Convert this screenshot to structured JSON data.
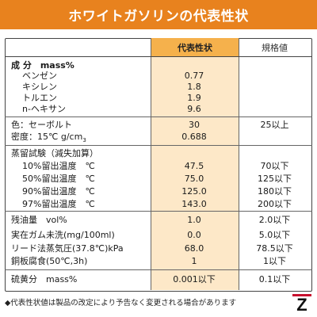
{
  "title": "ホワイトガソリンの代表性状",
  "table": {
    "col_rep": "代表性状",
    "col_spec": "規格値",
    "rows": [
      {
        "label": "成 分　mass%",
        "value": "",
        "spec": ""
      },
      {
        "label": "ベンゼン",
        "value": "0.77",
        "spec": ""
      },
      {
        "label": "キシレン",
        "value": "1.8",
        "spec": ""
      },
      {
        "label": "トルエン",
        "value": "1.9",
        "spec": ""
      },
      {
        "label": "n-ヘキサン",
        "value": "9.6",
        "spec": ""
      },
      {
        "label": "色：セーボルト",
        "value": "30",
        "spec": "25以上"
      },
      {
        "label": "密度：15℃ g/cm",
        "label_sub": "3",
        "value": "0.688",
        "spec": ""
      },
      {
        "label": "蒸留試験（減失加算）",
        "value": "",
        "spec": ""
      },
      {
        "label": "10%留出温度　℃",
        "value": "47.5",
        "spec": "70以下"
      },
      {
        "label": "50%留出温度　℃",
        "value": "75.0",
        "spec": "125以下"
      },
      {
        "label": "90%留出温度　℃",
        "value": "125.0",
        "spec": "180以下"
      },
      {
        "label": "97%留出温度　℃",
        "value": "143.0",
        "spec": "200以下"
      },
      {
        "label": "残油量　vol%",
        "value": "1.0",
        "spec": "2.0以下"
      },
      {
        "label": "実在ガム未洗(mg/100ml)",
        "value": "0.0",
        "spec": "5.0以下"
      },
      {
        "label": "リード法蒸気圧(37.8℃)kPa",
        "value": "68.0",
        "spec": "78.5以下"
      },
      {
        "label": "銅板腐食(50℃,3h)",
        "value": "1",
        "spec": "1以下"
      },
      {
        "label": "硫黄分　mass%",
        "value": "0.001以下",
        "spec": "0.1以下"
      }
    ]
  },
  "footnote": "◆代表性状値は製品の改定により予告なく変更される場合があります",
  "logo_letter": "Z",
  "colors": {
    "banner": "#e8821e",
    "header_cell": "#f5b14c",
    "value_col": "#fde8c8",
    "logo_red": "#c8102e"
  }
}
